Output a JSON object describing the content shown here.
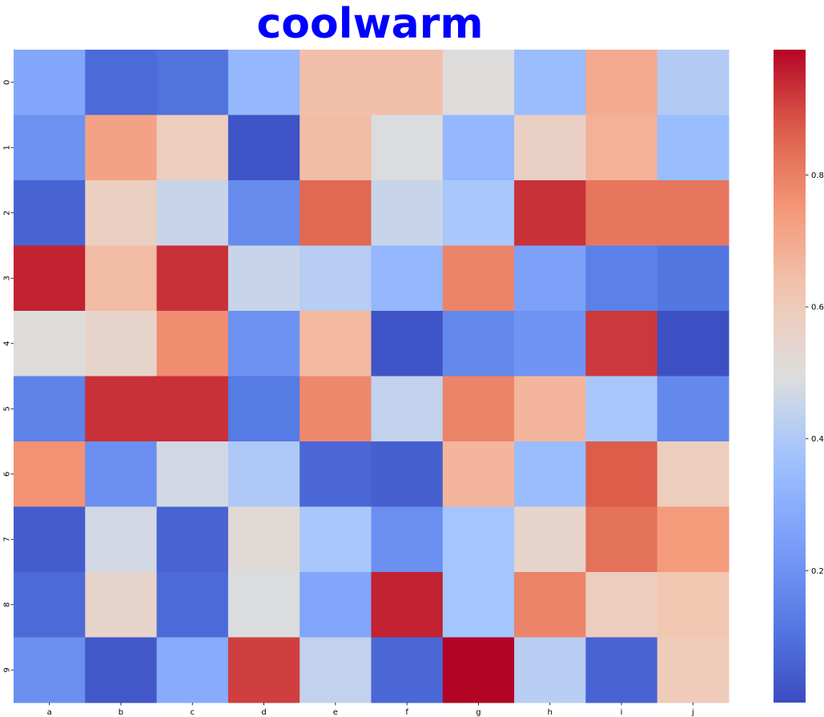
{
  "chart_data": {
    "type": "heatmap",
    "title": "coolwarm",
    "title_color": "#0000ff",
    "colormap": "coolwarm",
    "x_categories": [
      "a",
      "b",
      "c",
      "d",
      "e",
      "f",
      "g",
      "h",
      "i",
      "j"
    ],
    "y_categories": [
      "0",
      "1",
      "2",
      "3",
      "4",
      "5",
      "6",
      "7",
      "8",
      "9"
    ],
    "values": [
      [
        0.27,
        0.08,
        0.1,
        0.33,
        0.64,
        0.64,
        0.5,
        0.35,
        0.7,
        0.41
      ],
      [
        0.2,
        0.72,
        0.59,
        0.02,
        0.65,
        0.49,
        0.33,
        0.57,
        0.68,
        0.35
      ],
      [
        0.06,
        0.58,
        0.45,
        0.18,
        0.85,
        0.45,
        0.39,
        0.93,
        0.82,
        0.82
      ],
      [
        0.95,
        0.65,
        0.93,
        0.45,
        0.42,
        0.33,
        0.79,
        0.25,
        0.14,
        0.11
      ],
      [
        0.5,
        0.55,
        0.77,
        0.2,
        0.66,
        0.02,
        0.17,
        0.21,
        0.92,
        0.01
      ],
      [
        0.15,
        0.93,
        0.93,
        0.12,
        0.78,
        0.44,
        0.79,
        0.67,
        0.39,
        0.17
      ],
      [
        0.76,
        0.19,
        0.47,
        0.4,
        0.07,
        0.05,
        0.67,
        0.35,
        0.87,
        0.59
      ],
      [
        0.04,
        0.47,
        0.06,
        0.52,
        0.39,
        0.19,
        0.38,
        0.55,
        0.83,
        0.74
      ],
      [
        0.08,
        0.55,
        0.08,
        0.49,
        0.27,
        0.95,
        0.38,
        0.79,
        0.59,
        0.62
      ],
      [
        0.19,
        0.03,
        0.29,
        0.91,
        0.44,
        0.07,
        0.99,
        0.42,
        0.06,
        0.6
      ]
    ],
    "colorbar": {
      "min": 0.0,
      "max": 0.99,
      "ticks": [
        "0.2",
        "0.4",
        "0.6",
        "0.8"
      ],
      "tick_values": [
        0.2,
        0.4,
        0.6,
        0.8
      ]
    },
    "grid": false
  }
}
